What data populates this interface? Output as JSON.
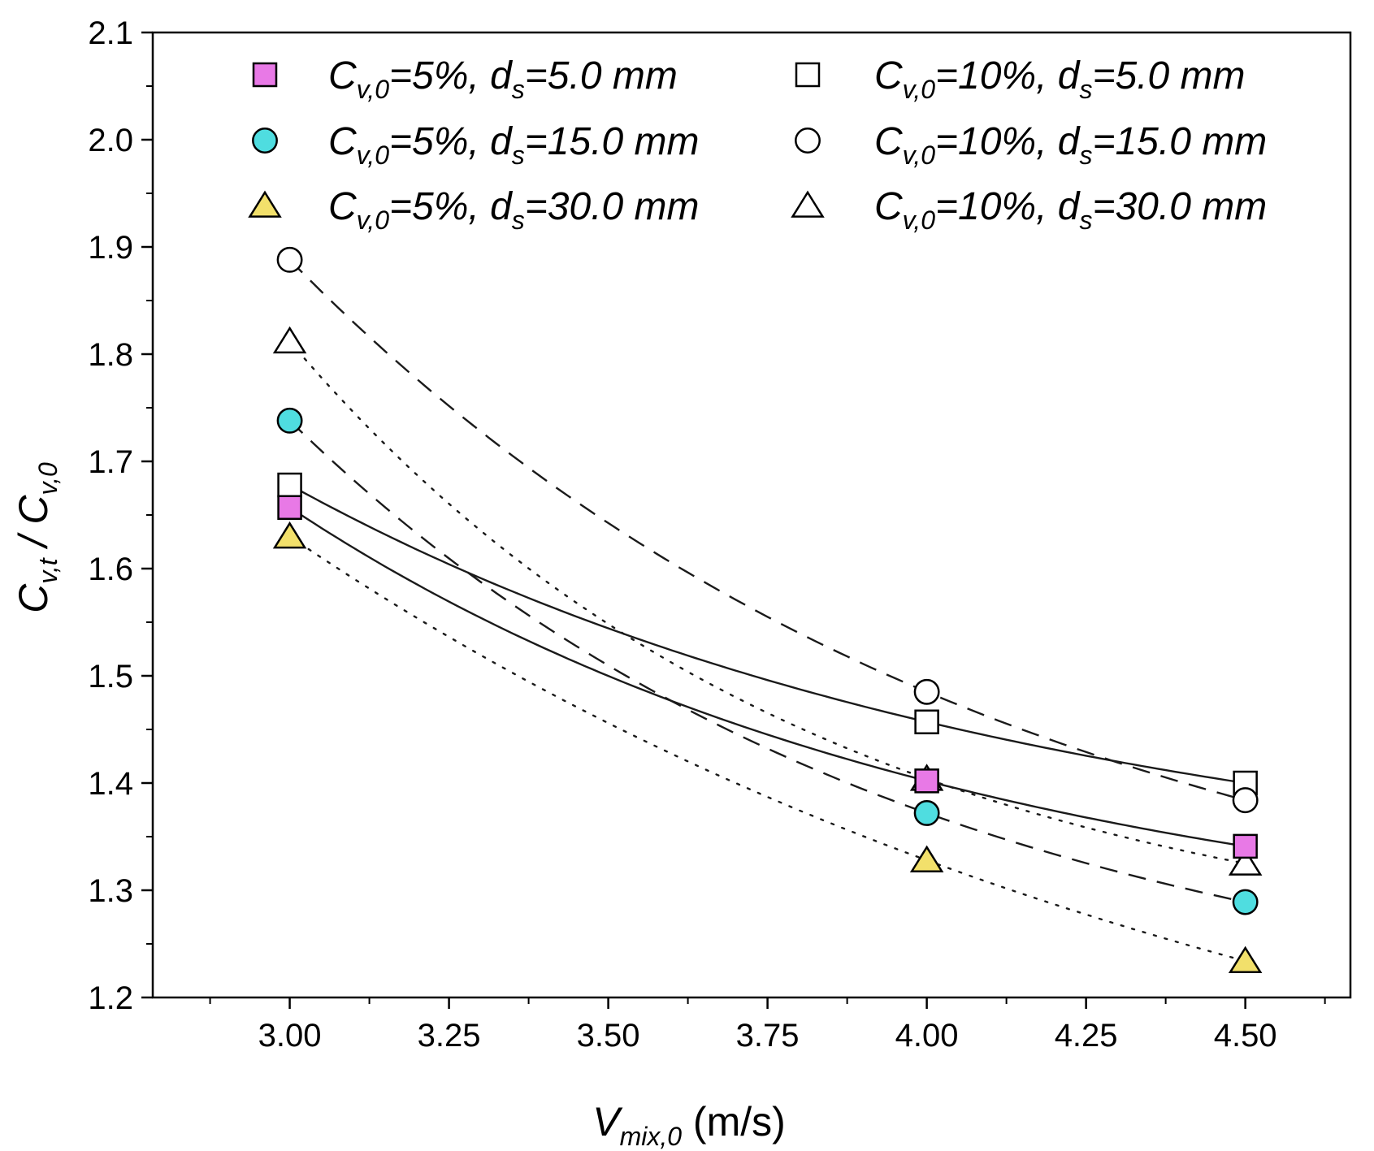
{
  "chart_data": {
    "type": "scatter",
    "xlabel": {
      "main": "V",
      "sub": "mix,0",
      "unit": " (m/s)"
    },
    "ylabel": {
      "num_main": "C",
      "num_sub": "v,t",
      "sep": " / ",
      "den_main": "C",
      "den_sub": "v,0"
    },
    "xlim": [
      2.785,
      4.665
    ],
    "ylim": [
      1.2,
      2.1
    ],
    "x_ticks": [
      "3.00",
      "3.25",
      "3.50",
      "3.75",
      "4.00",
      "4.25",
      "4.50"
    ],
    "y_ticks": [
      "1.2",
      "1.3",
      "1.4",
      "1.5",
      "1.6",
      "1.7",
      "1.8",
      "1.9",
      "2.0",
      "2.1"
    ],
    "legend_position": "top",
    "series": [
      {
        "name": "Cv0=5%, ds=5.0 mm",
        "label": {
          "c": "C",
          "csub": "v,0",
          "mid": "=5%, d",
          "dsub": "s",
          "tail": "=5.0 mm"
        },
        "marker": "square",
        "fill": "#e879e6",
        "line": "solid",
        "x": [
          3.0,
          4.0,
          4.5
        ],
        "values": [
          1.657,
          1.402,
          1.341
        ]
      },
      {
        "name": "Cv0=5%, ds=15.0 mm",
        "label": {
          "c": "C",
          "csub": "v,0",
          "mid": "=5%, d",
          "dsub": "s",
          "tail": "=15.0 mm"
        },
        "marker": "circle",
        "fill": "#4fdde0",
        "line": "dashed",
        "x": [
          3.0,
          4.0,
          4.5
        ],
        "values": [
          1.738,
          1.372,
          1.289
        ]
      },
      {
        "name": "Cv0=5%, ds=30.0 mm",
        "label": {
          "c": "C",
          "csub": "v,0",
          "mid": "=5%, d",
          "dsub": "s",
          "tail": "=30.0 mm"
        },
        "marker": "triangle",
        "fill": "#f2e06b",
        "line": "dotted",
        "x": [
          3.0,
          4.0,
          4.5
        ],
        "values": [
          1.63,
          1.328,
          1.234
        ]
      },
      {
        "name": "Cv0=10%, ds=5.0 mm",
        "label": {
          "c": "C",
          "csub": "v,0",
          "mid": "=10%, d",
          "dsub": "s",
          "tail": "=5.0 mm"
        },
        "marker": "square",
        "fill": "#ffffff",
        "line": "solid",
        "x": [
          3.0,
          4.0,
          4.5
        ],
        "values": [
          1.678,
          1.457,
          1.4
        ]
      },
      {
        "name": "Cv0=10%, ds=15.0 mm",
        "label": {
          "c": "C",
          "csub": "v,0",
          "mid": "=10%, d",
          "dsub": "s",
          "tail": "=15.0 mm"
        },
        "marker": "circle",
        "fill": "#ffffff",
        "line": "dashed",
        "x": [
          3.0,
          4.0,
          4.5
        ],
        "values": [
          1.888,
          1.485,
          1.384
        ]
      },
      {
        "name": "Cv0=10%, ds=30.0 mm",
        "label": {
          "c": "C",
          "csub": "v,0",
          "mid": "=10%, d",
          "dsub": "s",
          "tail": "=30.0 mm"
        },
        "marker": "triangle",
        "fill": "#ffffff",
        "line": "dotted",
        "x": [
          3.0,
          4.0,
          4.5
        ],
        "values": [
          1.812,
          1.404,
          1.325
        ]
      }
    ]
  }
}
